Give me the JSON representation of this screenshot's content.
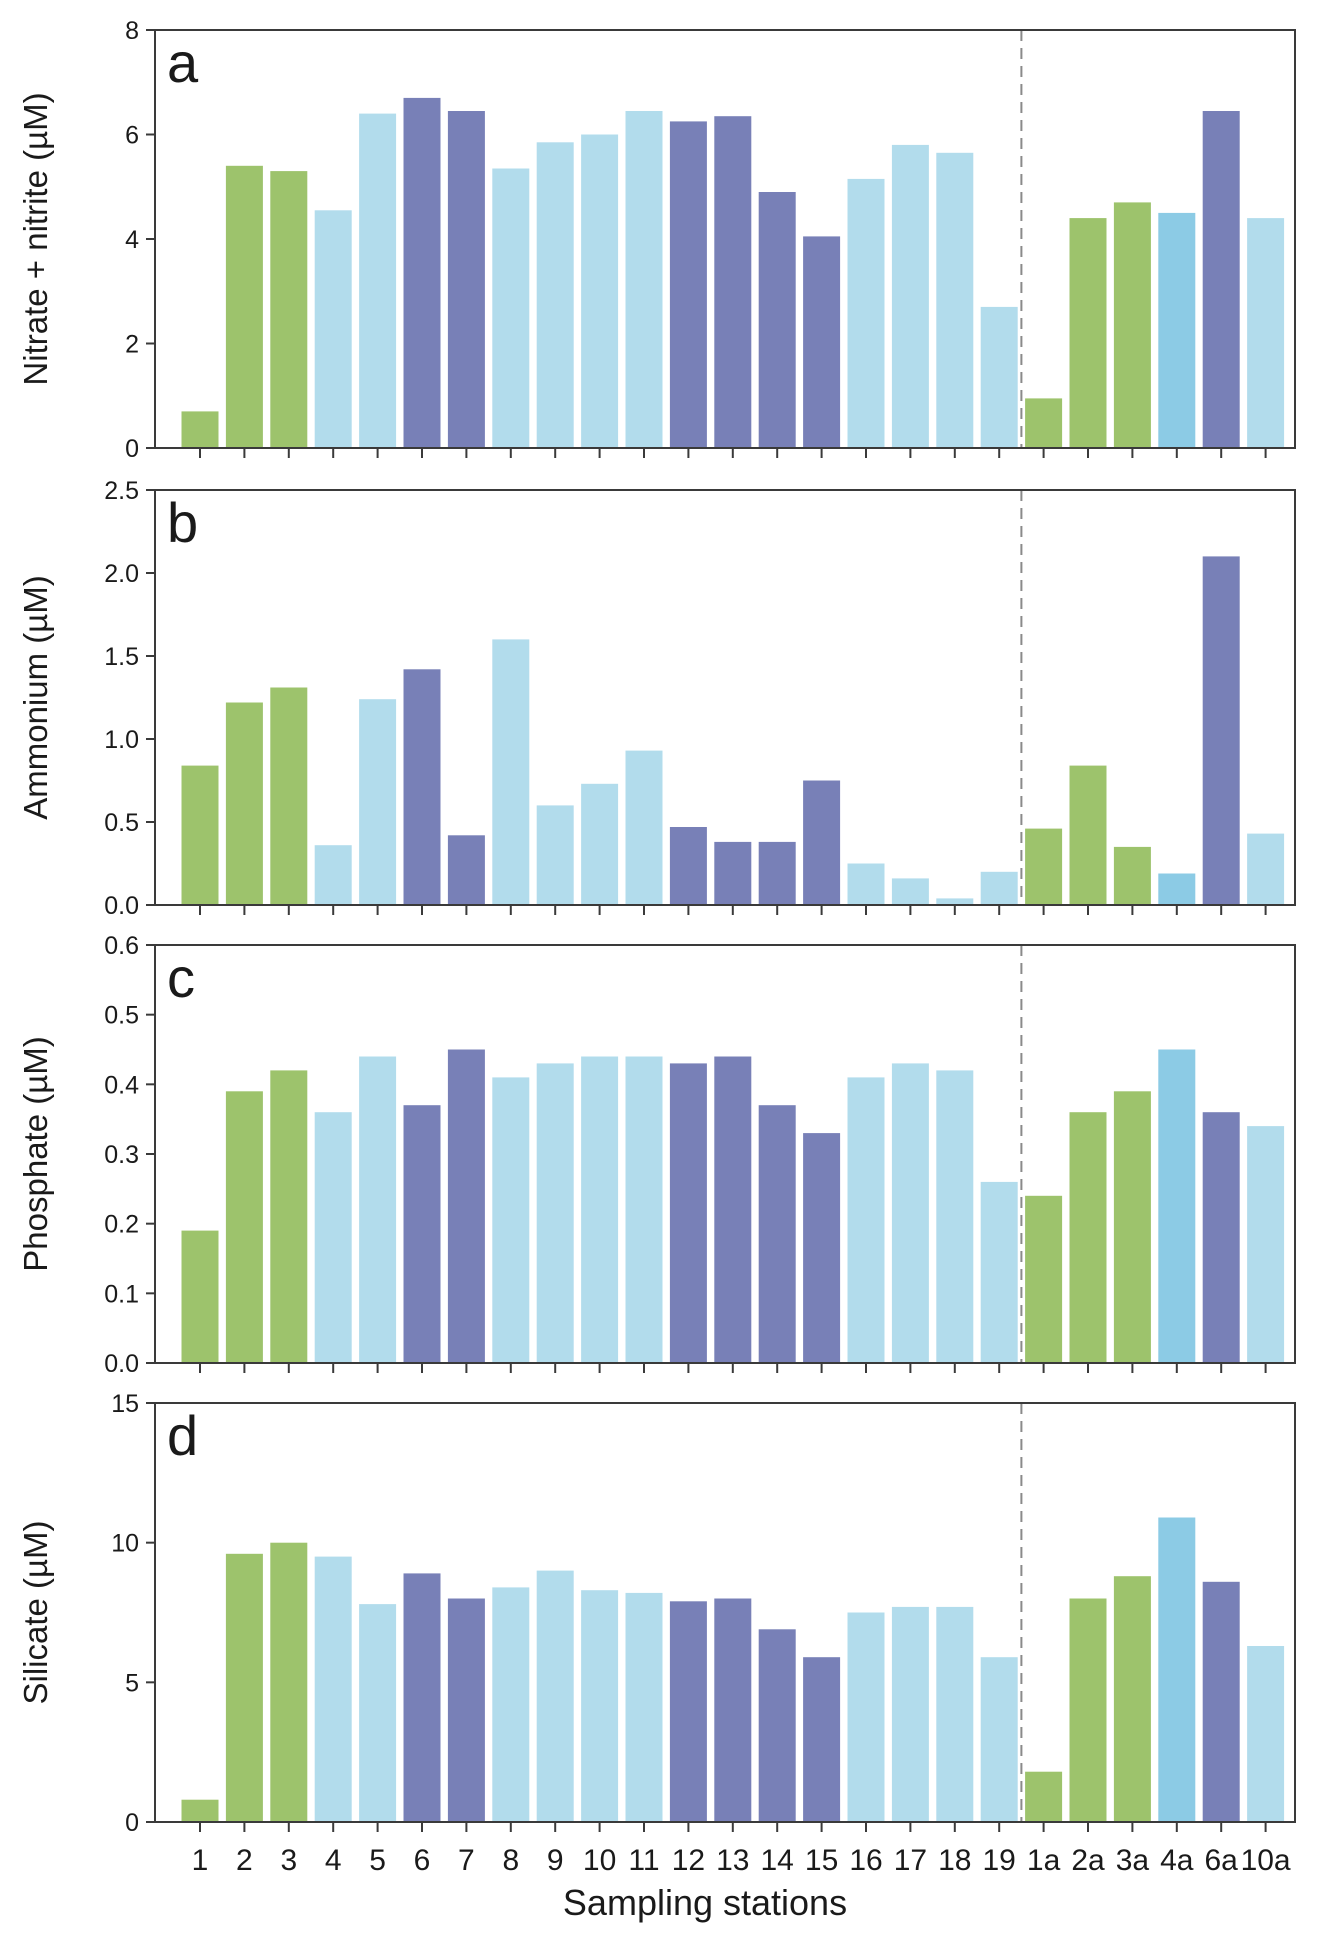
{
  "chart_data": {
    "type": "bar",
    "layout": "stacked-panels",
    "shared_x": true,
    "xlabel": "Sampling stations",
    "categories": [
      "1",
      "2",
      "3",
      "4",
      "5",
      "6",
      "7",
      "8",
      "9",
      "10",
      "11",
      "12",
      "13",
      "14",
      "15",
      "16",
      "17",
      "18",
      "19",
      "1a",
      "2a",
      "3a",
      "4a",
      "6a",
      "10a"
    ],
    "bar_color_keys": [
      "green",
      "green",
      "green",
      "light",
      "light",
      "dark",
      "dark",
      "light",
      "light",
      "light",
      "light",
      "dark",
      "dark",
      "dark",
      "dark",
      "light",
      "light",
      "light",
      "light",
      "green",
      "green",
      "green",
      "mid",
      "dark",
      "light"
    ],
    "colors": {
      "green": "#9dc36c",
      "light": "#b2dcec",
      "dark": "#7880b7",
      "mid": "#8ccbe5"
    },
    "divider": {
      "after_category": "19",
      "style": "dashed"
    },
    "panels": [
      {
        "label": "a",
        "ylabel": "Nitrate + nitrite (µM)",
        "ylim": [
          0,
          8
        ],
        "yticks": [
          0,
          2,
          4,
          6,
          8
        ],
        "ytick_labels": [
          "0",
          "2",
          "4",
          "6",
          "8"
        ],
        "values": [
          0.7,
          5.4,
          5.3,
          4.55,
          6.4,
          6.7,
          6.45,
          5.35,
          5.85,
          6.0,
          6.45,
          6.25,
          6.35,
          4.9,
          4.05,
          5.15,
          5.8,
          5.65,
          2.7,
          0.95,
          4.4,
          4.7,
          4.5,
          6.45,
          4.4
        ]
      },
      {
        "label": "b",
        "ylabel": "Ammonium (µM)",
        "ylim": [
          0,
          2.5
        ],
        "yticks": [
          0,
          0.5,
          1.0,
          1.5,
          2.0,
          2.5
        ],
        "ytick_labels": [
          "0.0",
          "0.5",
          "1.0",
          "1.5",
          "2.0",
          "2.5"
        ],
        "values": [
          0.84,
          1.22,
          1.31,
          0.36,
          1.24,
          1.42,
          0.42,
          1.6,
          0.6,
          0.73,
          0.93,
          0.47,
          0.38,
          0.38,
          0.75,
          0.25,
          0.16,
          0.04,
          0.2,
          0.46,
          0.84,
          0.35,
          0.19,
          2.1,
          0.43
        ]
      },
      {
        "label": "c",
        "ylabel": "Phosphate (µM)",
        "ylim": [
          0,
          0.6
        ],
        "yticks": [
          0,
          0.1,
          0.2,
          0.3,
          0.4,
          0.5,
          0.6
        ],
        "ytick_labels": [
          "0.0",
          "0.1",
          "0.2",
          "0.3",
          "0.4",
          "0.5",
          "0.6"
        ],
        "values": [
          0.19,
          0.39,
          0.42,
          0.36,
          0.44,
          0.37,
          0.45,
          0.41,
          0.43,
          0.44,
          0.44,
          0.43,
          0.44,
          0.37,
          0.33,
          0.41,
          0.43,
          0.42,
          0.26,
          0.24,
          0.36,
          0.39,
          0.45,
          0.36,
          0.34
        ]
      },
      {
        "label": "d",
        "ylabel": "Silicate (µM)",
        "ylim": [
          0,
          15
        ],
        "yticks": [
          0,
          5,
          10,
          15
        ],
        "ytick_labels": [
          "0",
          "5",
          "10",
          "15"
        ],
        "values": [
          0.8,
          9.6,
          10.0,
          9.5,
          7.8,
          8.9,
          8.0,
          8.4,
          9.0,
          8.3,
          8.2,
          7.9,
          8.0,
          6.9,
          5.9,
          7.5,
          7.7,
          7.7,
          5.9,
          1.8,
          8.0,
          8.8,
          10.9,
          8.6,
          6.3
        ]
      }
    ]
  }
}
